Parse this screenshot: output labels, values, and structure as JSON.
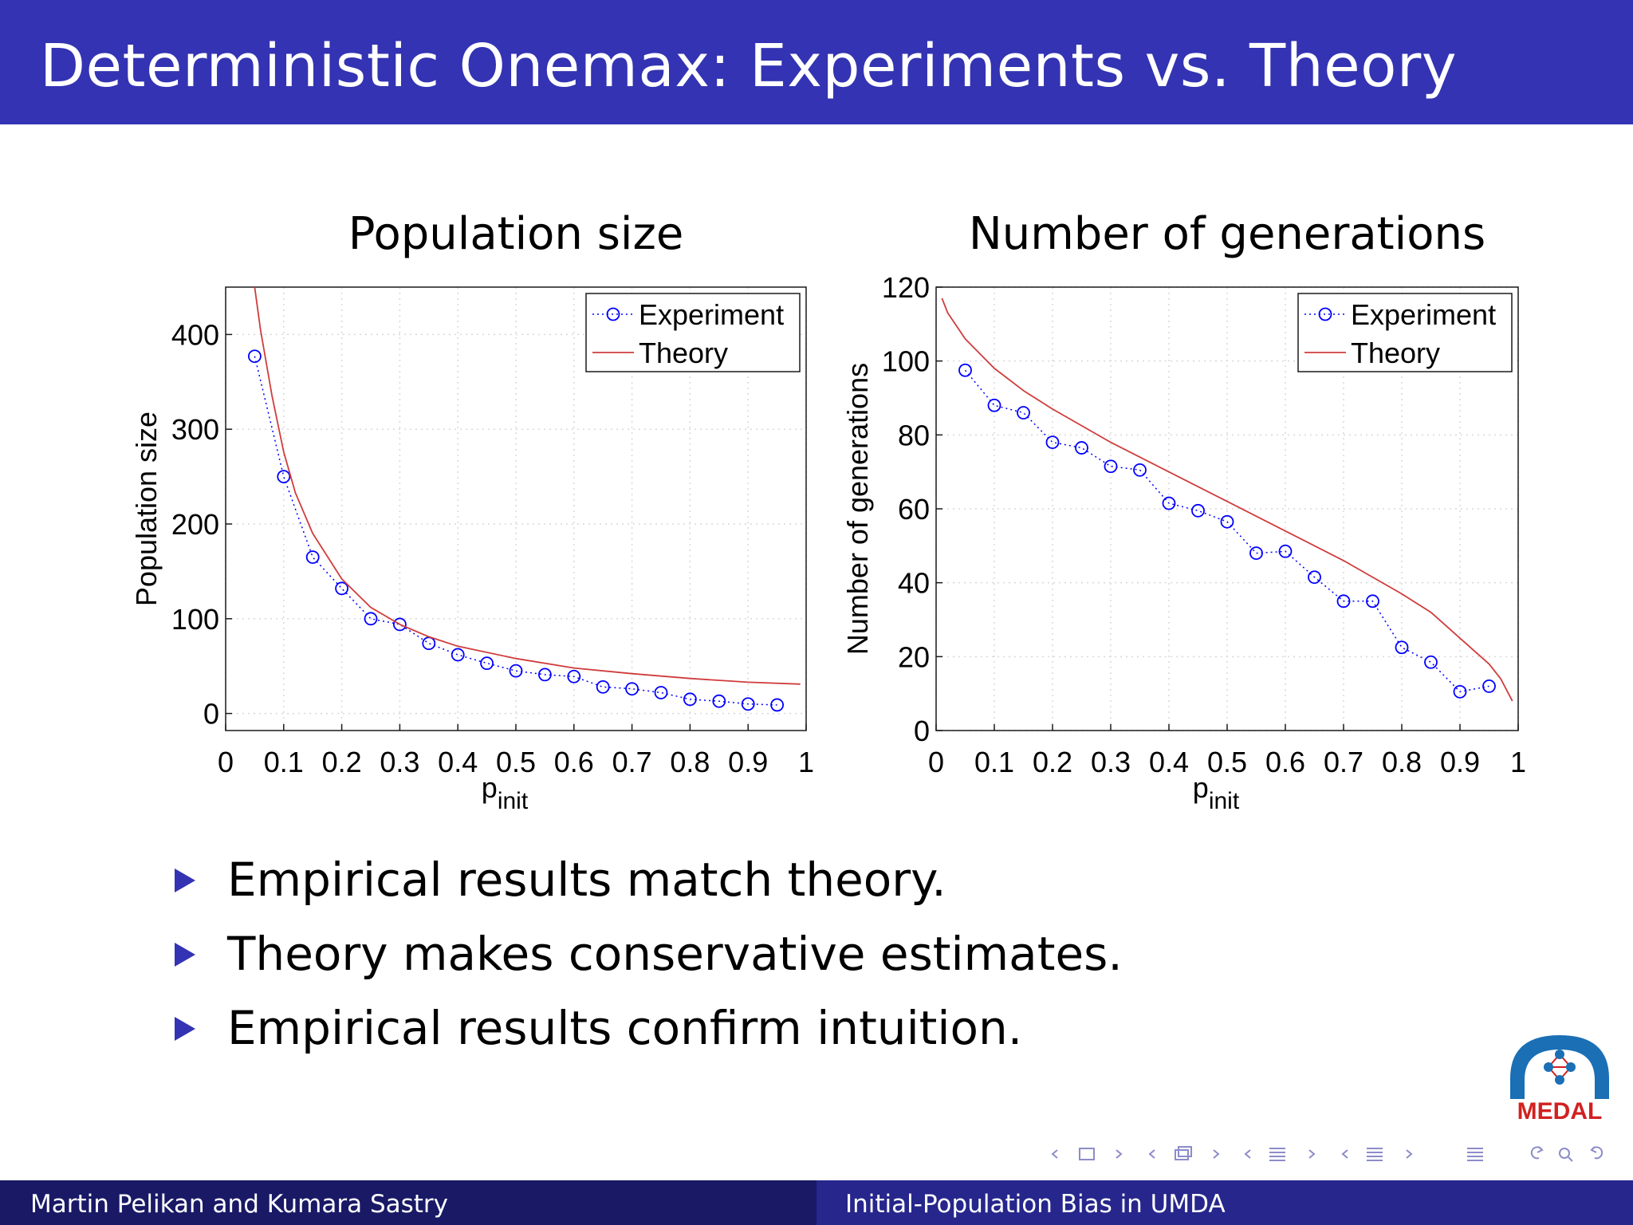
{
  "slide": {
    "title": "Deterministic Onemax: Experiments vs. Theory"
  },
  "chart_data": [
    {
      "type": "line",
      "title": "Population size",
      "xlabel": "p",
      "xlabel_sub": "init",
      "ylabel": "Population size",
      "xlim": [
        0,
        1
      ],
      "ylim": [
        -18,
        450
      ],
      "x_ticks": [
        0,
        0.1,
        0.2,
        0.3,
        0.4,
        0.5,
        0.6,
        0.7,
        0.8,
        0.9,
        1
      ],
      "x_tick_labels": [
        "0",
        "0.1",
        "0.2",
        "0.3",
        "0.4",
        "0.5",
        "0.6",
        "0.7",
        "0.8",
        "0.9",
        "1"
      ],
      "y_ticks": [
        0,
        100,
        200,
        300,
        400
      ],
      "y_tick_labels": [
        "0",
        "100",
        "200",
        "300",
        "400"
      ],
      "grid": true,
      "legend": {
        "position": "top-right",
        "entries": [
          "Experiment",
          "Theory"
        ]
      },
      "series": [
        {
          "name": "Experiment",
          "style": "circles-dotted",
          "color": "#0000ff",
          "x": [
            0.05,
            0.1,
            0.15,
            0.2,
            0.25,
            0.3,
            0.35,
            0.4,
            0.45,
            0.5,
            0.55,
            0.6,
            0.65,
            0.7,
            0.75,
            0.8,
            0.85,
            0.9,
            0.95
          ],
          "y": [
            377,
            250,
            165,
            132,
            100,
            94,
            74,
            62,
            53,
            45,
            41,
            39,
            28,
            26,
            22,
            15,
            13,
            10,
            9
          ]
        },
        {
          "name": "Theory",
          "style": "solid",
          "color": "#d03c3c",
          "x": [
            0.05,
            0.06,
            0.08,
            0.1,
            0.12,
            0.15,
            0.2,
            0.25,
            0.3,
            0.35,
            0.4,
            0.5,
            0.6,
            0.7,
            0.8,
            0.9,
            0.99
          ],
          "y": [
            450,
            405,
            335,
            276,
            233,
            190,
            142,
            112,
            94,
            81,
            71,
            58,
            48,
            42,
            37,
            33,
            31
          ]
        }
      ]
    },
    {
      "type": "line",
      "title": "Number of generations",
      "xlabel": "p",
      "xlabel_sub": "init",
      "ylabel": "Number of generations",
      "xlim": [
        0,
        1
      ],
      "ylim": [
        0,
        120
      ],
      "x_ticks": [
        0,
        0.1,
        0.2,
        0.3,
        0.4,
        0.5,
        0.6,
        0.7,
        0.8,
        0.9,
        1
      ],
      "x_tick_labels": [
        "0",
        "0.1",
        "0.2",
        "0.3",
        "0.4",
        "0.5",
        "0.6",
        "0.7",
        "0.8",
        "0.9",
        "1"
      ],
      "y_ticks": [
        0,
        20,
        40,
        60,
        80,
        100,
        120
      ],
      "y_tick_labels": [
        "0",
        "20",
        "40",
        "60",
        "80",
        "100",
        "120"
      ],
      "grid": true,
      "legend": {
        "position": "top-right",
        "entries": [
          "Experiment",
          "Theory"
        ]
      },
      "series": [
        {
          "name": "Experiment",
          "style": "circles-dotted",
          "color": "#0000ff",
          "x": [
            0.05,
            0.1,
            0.15,
            0.2,
            0.25,
            0.3,
            0.35,
            0.4,
            0.45,
            0.5,
            0.55,
            0.6,
            0.65,
            0.7,
            0.75,
            0.8,
            0.85,
            0.9,
            0.95
          ],
          "y": [
            97.5,
            88,
            86,
            78,
            76.5,
            71.5,
            70.5,
            61.5,
            59.5,
            56.5,
            48,
            48.5,
            41.5,
            35,
            35,
            22.5,
            18.5,
            10.5,
            12
          ]
        },
        {
          "name": "Theory",
          "style": "solid",
          "color": "#d03c3c",
          "x": [
            0.01,
            0.02,
            0.05,
            0.1,
            0.15,
            0.2,
            0.3,
            0.4,
            0.5,
            0.6,
            0.7,
            0.8,
            0.85,
            0.9,
            0.95,
            0.97,
            0.99
          ],
          "y": [
            117,
            113,
            106,
            98,
            92,
            87,
            78,
            70,
            62,
            54,
            46,
            37,
            32,
            25,
            18,
            14,
            8
          ]
        }
      ]
    }
  ],
  "bullets": [
    "Empirical results match theory.",
    "Theory makes conservative estimates.",
    "Empirical results confirm intuition."
  ],
  "logo": {
    "text": "MEDAL",
    "color": "#1a6fb5",
    "text_color": "#d22020"
  },
  "footer": {
    "left": "Martin Pelikan and Kumara Sastry",
    "right": "Initial-Population Bias in UMDA"
  }
}
